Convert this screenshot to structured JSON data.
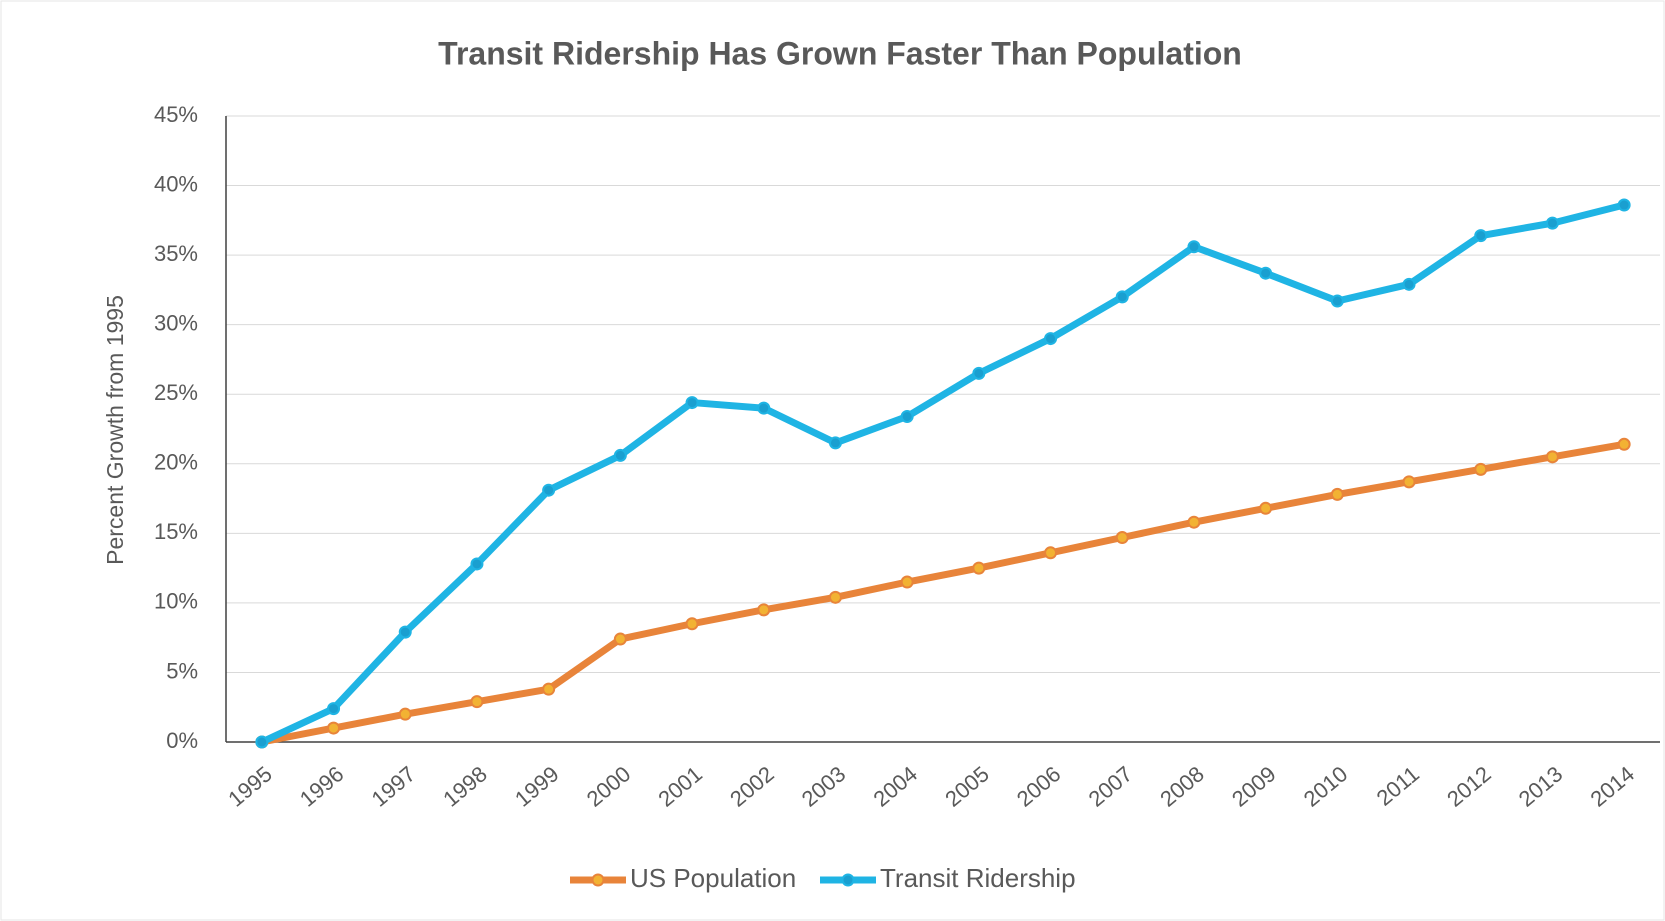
{
  "chart_data": {
    "type": "line",
    "title": "Transit Ridership Has Grown Faster Than Population",
    "y_label": "Percent Growth from 1995",
    "categories": [
      "1995",
      "1996",
      "1997",
      "1998",
      "1999",
      "2000",
      "2001",
      "2002",
      "2003",
      "2004",
      "2005",
      "2006",
      "2007",
      "2008",
      "2009",
      "2010",
      "2011",
      "2012",
      "2013",
      "2014"
    ],
    "series": [
      {
        "name": "US Population",
        "color": "#e8843a",
        "marker_color": "#f2b233",
        "values": [
          0,
          1,
          2,
          2.9,
          3.8,
          7.4,
          8.5,
          9.5,
          10.4,
          11.5,
          12.5,
          13.6,
          14.7,
          15.8,
          16.8,
          17.8,
          18.7,
          19.6,
          20.5,
          21.4
        ]
      },
      {
        "name": "Transit Ridership",
        "color": "#1fb4e4",
        "marker_color": "#1a9fd0",
        "values": [
          0,
          2.4,
          7.9,
          12.8,
          18.1,
          20.6,
          24.4,
          24,
          21.5,
          23.4,
          26.5,
          29,
          32,
          35.6,
          33.7,
          31.7,
          32.9,
          36.4,
          37.3,
          38.6
        ]
      }
    ],
    "ylim": [
      0,
      45
    ],
    "yticks": [
      {
        "value": 0,
        "label": "0%"
      },
      {
        "value": 5,
        "label": "5%"
      },
      {
        "value": 10,
        "label": "10%"
      },
      {
        "value": 15,
        "label": "15%"
      },
      {
        "value": 20,
        "label": "20%"
      },
      {
        "value": 25,
        "label": "25%"
      },
      {
        "value": 30,
        "label": "30%"
      },
      {
        "value": 35,
        "label": "35%"
      },
      {
        "value": 40,
        "label": "40%"
      },
      {
        "value": 45,
        "label": "45%"
      }
    ],
    "grid": true,
    "legend": "bottom"
  }
}
